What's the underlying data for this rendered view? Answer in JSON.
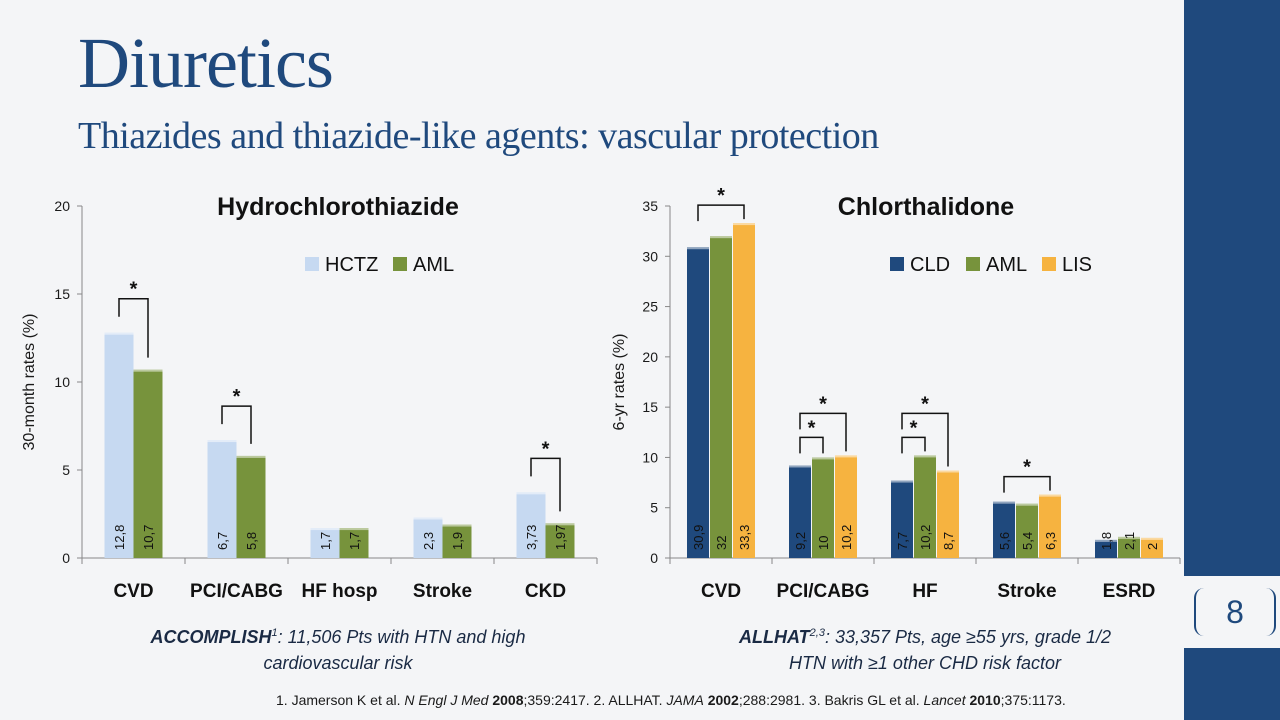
{
  "slide": {
    "title": "Diuretics",
    "subtitle": "Thiazides and thiazide-like agents: vascular protection",
    "page_number": "8"
  },
  "captions": {
    "left": {
      "name": "ACCOMPLISH",
      "sup": "1",
      "line1": ": 11,506 Pts with HTN and high",
      "line2": "cardiovascular risk"
    },
    "right": {
      "name": "ALLHAT",
      "sup": "2,3",
      "line1": ": 33,357 Pts, age ≥55 yrs, grade 1/2",
      "line2": "HTN with ≥1 other CHD risk factor"
    }
  },
  "footnote": {
    "r1_pre": "1. Jamerson K et al. ",
    "r1_journal": "N Engl J Med",
    "r1_year": "2008",
    "r1_rest": ";359:2417. 2. ALLHAT. ",
    "r2_journal": "JAMA",
    "r2_year": "2002",
    "r2_rest": ";288:2981. 3. Bakris GL et al. ",
    "r3_journal": "Lancet",
    "r3_year": "2010",
    "r3_rest": ";375:1173."
  },
  "chart_data": [
    {
      "type": "bar",
      "title": "Hydrochlorothiazide",
      "ylabel": "30-month rates (%)",
      "ylim": [
        0,
        20
      ],
      "yticks": [
        0,
        5,
        10,
        15,
        20
      ],
      "categories": [
        "CVD",
        "PCI/CABG",
        "HF hosp",
        "Stroke",
        "CKD"
      ],
      "series": [
        {
          "name": "HCTZ",
          "color": "#c6d9f1",
          "values": [
            12.8,
            6.7,
            1.7,
            2.3,
            3.73
          ],
          "labels": [
            "12,8",
            "6,7",
            "1,7",
            "2,3",
            "3,73"
          ]
        },
        {
          "name": "AML",
          "color": "#77933c",
          "values": [
            10.7,
            5.8,
            1.7,
            1.9,
            1.97
          ],
          "labels": [
            "10,7",
            "5,8",
            "1,7",
            "1,9",
            "1,97"
          ]
        }
      ],
      "significance": [
        {
          "category": 0,
          "from": 0,
          "to": 1,
          "symbol": "*"
        },
        {
          "category": 1,
          "from": 0,
          "to": 1,
          "symbol": "*"
        },
        {
          "category": 4,
          "from": 0,
          "to": 1,
          "symbol": "*"
        }
      ],
      "legend": "top-right",
      "grid": false
    },
    {
      "type": "bar",
      "title": "Chlorthalidone",
      "ylabel": "6-yr rates (%)",
      "ylim": [
        0,
        35
      ],
      "yticks": [
        0,
        5,
        10,
        15,
        20,
        25,
        30,
        35
      ],
      "categories": [
        "CVD",
        "PCI/CABG",
        "HF",
        "Stroke",
        "ESRD"
      ],
      "series": [
        {
          "name": "CLD",
          "color": "#1f497d",
          "values": [
            30.9,
            9.2,
            7.7,
            5.6,
            1.8
          ],
          "labels": [
            "30,9",
            "9,2",
            "7,7",
            "5,6",
            "1,8"
          ]
        },
        {
          "name": "AML",
          "color": "#77933c",
          "values": [
            32,
            10,
            10.2,
            5.4,
            2.1
          ],
          "labels": [
            "32",
            "10",
            "10,2",
            "5,4",
            "2,1"
          ]
        },
        {
          "name": "LIS",
          "color": "#f6b340",
          "values": [
            33.3,
            10.2,
            8.7,
            6.3,
            2
          ],
          "labels": [
            "33,3",
            "10,2",
            "8,7",
            "6,3",
            "2"
          ]
        }
      ],
      "significance": [
        {
          "category": 0,
          "from": 0,
          "to": 2,
          "symbol": "*"
        },
        {
          "category": 1,
          "from": 0,
          "to": 1,
          "symbol": "*"
        },
        {
          "category": 1,
          "from": 0,
          "to": 2,
          "symbol": "*"
        },
        {
          "category": 2,
          "from": 0,
          "to": 1,
          "symbol": "*"
        },
        {
          "category": 2,
          "from": 0,
          "to": 2,
          "symbol": "*"
        },
        {
          "category": 3,
          "from": 0,
          "to": 2,
          "symbol": "*"
        }
      ],
      "legend": "top-right",
      "grid": false
    }
  ]
}
